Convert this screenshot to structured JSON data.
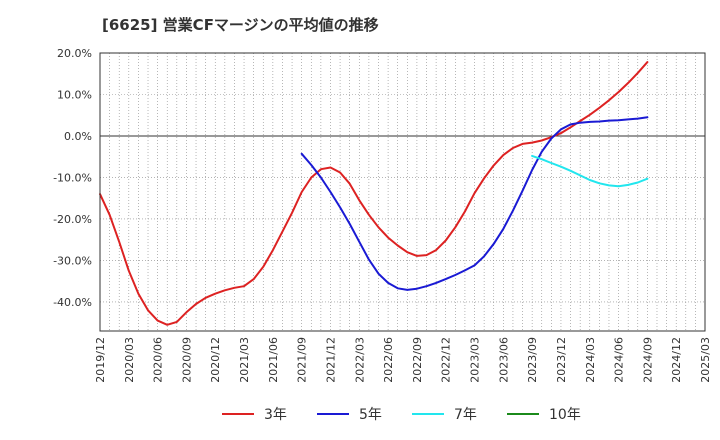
{
  "chart_data": {
    "type": "line",
    "title": "[6625]  営業CFマージンの平均値の推移",
    "xlabel": "",
    "ylabel": "",
    "ylim": [
      -47,
      20
    ],
    "y_ticks": [
      20,
      10,
      0,
      -10,
      -20,
      -30,
      -40
    ],
    "y_tick_labels": [
      "20.0%",
      "10.0%",
      "0.0%",
      "-10.0%",
      "-20.0%",
      "-30.0%",
      "-40.0%"
    ],
    "x_tick_labels": [
      "2019/12",
      "2020/03",
      "2020/06",
      "2020/09",
      "2020/12",
      "2021/03",
      "2021/06",
      "2021/09",
      "2021/12",
      "2022/03",
      "2022/06",
      "2022/09",
      "2022/12",
      "2023/03",
      "2023/06",
      "2023/09",
      "2023/12",
      "2024/03",
      "2024/06",
      "2024/09",
      "2024/12",
      "2025/03"
    ],
    "x_start": "2019/12",
    "grid": true,
    "legend_position": "bottom",
    "series": [
      {
        "name": "3年",
        "color": "#dd2222",
        "x": [
          "2019/12",
          "2020/01",
          "2020/02",
          "2020/03",
          "2020/04",
          "2020/05",
          "2020/06",
          "2020/07",
          "2020/08",
          "2020/09",
          "2020/10",
          "2020/11",
          "2020/12",
          "2021/01",
          "2021/02",
          "2021/03",
          "2021/04",
          "2021/05",
          "2021/06",
          "2021/07",
          "2021/08",
          "2021/09",
          "2021/10",
          "2021/11",
          "2021/12",
          "2022/01",
          "2022/02",
          "2022/03",
          "2022/04",
          "2022/05",
          "2022/06",
          "2022/07",
          "2022/08",
          "2022/09",
          "2022/10",
          "2022/11",
          "2022/12",
          "2023/01",
          "2023/02",
          "2023/03",
          "2023/04",
          "2023/05",
          "2023/06",
          "2023/07",
          "2023/08",
          "2023/09",
          "2023/10",
          "2023/11",
          "2023/12",
          "2024/01",
          "2024/02",
          "2024/03",
          "2024/04",
          "2024/05",
          "2024/06",
          "2024/07",
          "2024/08",
          "2024/09"
        ],
        "values": [
          -14,
          -19,
          -25.5,
          -32.5,
          -38,
          -42,
          -44.5,
          -45.5,
          -44.8,
          -42.5,
          -40.5,
          -39,
          -38,
          -37.2,
          -36.6,
          -36.2,
          -34.5,
          -31.5,
          -27.5,
          -23,
          -18.5,
          -13.5,
          -10,
          -8,
          -7.6,
          -8.8,
          -11.5,
          -15.5,
          -19,
          -22,
          -24.5,
          -26.4,
          -28,
          -28.9,
          -28.7,
          -27.5,
          -25.2,
          -22,
          -18.2,
          -13.8,
          -10.2,
          -7.1,
          -4.6,
          -2.9,
          -1.9,
          -1.6,
          -1.1,
          -0.3,
          0.7,
          2.1,
          3.6,
          5.1,
          6.8,
          8.6,
          10.6,
          12.8,
          15.2,
          17.8
        ]
      },
      {
        "name": "5年",
        "color": "#1a1ad4",
        "x": [
          "2021/09",
          "2021/10",
          "2021/11",
          "2021/12",
          "2022/01",
          "2022/02",
          "2022/03",
          "2022/04",
          "2022/05",
          "2022/06",
          "2022/07",
          "2022/08",
          "2022/09",
          "2022/10",
          "2022/11",
          "2022/12",
          "2023/01",
          "2023/02",
          "2023/03",
          "2023/04",
          "2023/05",
          "2023/06",
          "2023/07",
          "2023/08",
          "2023/09",
          "2023/10",
          "2023/11",
          "2023/12",
          "2024/01",
          "2024/02",
          "2024/03",
          "2024/04",
          "2024/05",
          "2024/06",
          "2024/07",
          "2024/08",
          "2024/09"
        ],
        "values": [
          -4.3,
          -7,
          -10,
          -13.5,
          -17.2,
          -21.2,
          -25.5,
          -29.8,
          -33.2,
          -35.4,
          -36.7,
          -37.1,
          -36.8,
          -36.2,
          -35.4,
          -34.5,
          -33.5,
          -32.4,
          -31.2,
          -29,
          -26,
          -22.4,
          -18,
          -13.2,
          -8.2,
          -3.8,
          -0.6,
          1.6,
          2.8,
          3.2,
          3.4,
          3.5,
          3.7,
          3.8,
          4,
          4.2,
          4.5
        ]
      },
      {
        "name": "7年",
        "color": "#22e6ee",
        "x": [
          "2023/09",
          "2023/10",
          "2023/11",
          "2023/12",
          "2024/01",
          "2024/02",
          "2024/03",
          "2024/04",
          "2024/05",
          "2024/06",
          "2024/07",
          "2024/08",
          "2024/09"
        ],
        "values": [
          -4.8,
          -5.6,
          -6.5,
          -7.4,
          -8.4,
          -9.5,
          -10.6,
          -11.4,
          -11.9,
          -12.1,
          -11.8,
          -11.2,
          -10.3
        ]
      },
      {
        "name": "10年",
        "color": "#1b8a1b",
        "x": [],
        "values": []
      }
    ]
  }
}
